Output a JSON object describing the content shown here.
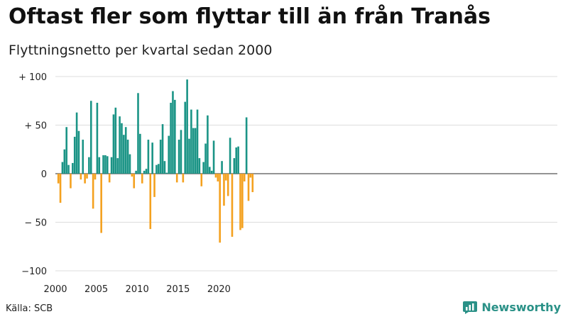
{
  "title": "Oftast fler som flyttar till än från Tranås",
  "subtitle": "Flyttningsnetto per kvartal sedan 2000",
  "source": "Källa: SCB",
  "brand": "Newsworthy",
  "colors": {
    "positive": "#1b9486",
    "negative": "#f4a11f",
    "brand": "#2a9187"
  },
  "chart_data": {
    "type": "bar",
    "title": "Oftast fler som flyttar till än från Tranås",
    "subtitle": "Flyttningsnetto per kvartal sedan 2000",
    "ylim": [
      -100,
      100
    ],
    "yticks": [
      100,
      50,
      0,
      -50,
      -100
    ],
    "ytick_labels": [
      "+ 100",
      "+  50",
      "0",
      "− 50",
      "−100"
    ],
    "xticks": [
      2000,
      2005,
      2010,
      2015,
      2020
    ],
    "x_start_year": 2000,
    "periods_per_year": 4,
    "grid": true,
    "values": [
      0,
      -10,
      -30,
      12,
      25,
      48,
      9,
      -15,
      11,
      38,
      63,
      44,
      -6,
      35,
      -10,
      -5,
      17,
      75,
      -36,
      -6,
      73,
      17,
      -61,
      19,
      19,
      18,
      -9,
      17,
      61,
      68,
      16,
      59,
      52,
      40,
      48,
      35,
      20,
      -3,
      -15,
      3,
      83,
      41,
      -10,
      3,
      5,
      35,
      -57,
      32,
      -24,
      9,
      10,
      35,
      51,
      13,
      1,
      39,
      73,
      85,
      76,
      -9,
      35,
      45,
      -9,
      74,
      97,
      36,
      66,
      47,
      47,
      66,
      16,
      -13,
      12,
      31,
      60,
      7,
      3,
      34,
      -4,
      -8,
      -71,
      13,
      -33,
      -7,
      -23,
      37,
      -65,
      16,
      27,
      28,
      -58,
      -56,
      -8,
      58,
      -28,
      -4,
      -19
    ]
  }
}
